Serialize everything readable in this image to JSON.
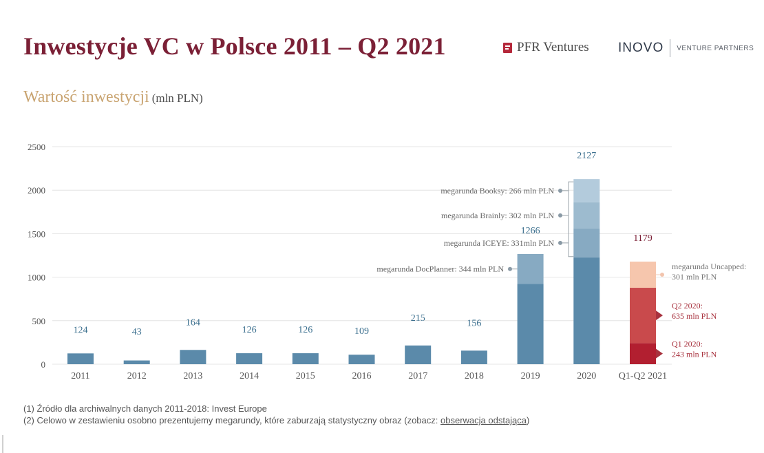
{
  "header": {
    "title": "Inwestycje VC w Polsce 2011 – Q2 2021",
    "logos": {
      "pfr": "PFR Ventures",
      "inovo_name": "INOVO",
      "inovo_sub": "VENTURE PARTNERS"
    }
  },
  "subtitle": {
    "main": "Wartość inwestycji",
    "unit": "(mln PLN)"
  },
  "chart_data": {
    "type": "bar",
    "stacked": true,
    "ylim": [
      0,
      2500
    ],
    "yticks": [
      0,
      500,
      1000,
      1500,
      2000,
      2500
    ],
    "grid": true,
    "categories": [
      "2011",
      "2012",
      "2013",
      "2014",
      "2015",
      "2016",
      "2017",
      "2018",
      "2019",
      "2020",
      "Q1-Q2 2021"
    ],
    "totals": [
      124,
      43,
      164,
      126,
      126,
      109,
      215,
      156,
      1266,
      2127,
      1179
    ],
    "total_labels": [
      "124",
      "43",
      "164",
      "126",
      "126",
      "109",
      "215",
      "156",
      "1266",
      "2127",
      "1179"
    ],
    "stacks": [
      [
        {
          "value": 124,
          "color": "#5b8aaa"
        }
      ],
      [
        {
          "value": 43,
          "color": "#5b8aaa"
        }
      ],
      [
        {
          "value": 164,
          "color": "#5b8aaa"
        }
      ],
      [
        {
          "value": 126,
          "color": "#5b8aaa"
        }
      ],
      [
        {
          "value": 126,
          "color": "#5b8aaa"
        }
      ],
      [
        {
          "value": 109,
          "color": "#5b8aaa"
        }
      ],
      [
        {
          "value": 215,
          "color": "#5b8aaa"
        }
      ],
      [
        {
          "value": 156,
          "color": "#5b8aaa"
        }
      ],
      [
        {
          "value": 922,
          "color": "#5b8aaa"
        },
        {
          "value": 344,
          "color": "#87aac2"
        }
      ],
      [
        {
          "value": 1228,
          "color": "#5b8aaa"
        },
        {
          "value": 331,
          "color": "#87aac2"
        },
        {
          "value": 302,
          "color": "#9dbbcf"
        },
        {
          "value": 266,
          "color": "#b3cbdc"
        }
      ],
      [
        {
          "value": 243,
          "color": "#b21f30"
        },
        {
          "value": 635,
          "color": "#c94a4c"
        },
        {
          "value": 301,
          "color": "#f6c6ad"
        }
      ]
    ],
    "annotations": [
      {
        "text": "megarunda DocPlanner: 344 mln PLN",
        "category": 8,
        "segment": 1,
        "side": "left"
      },
      {
        "text": "megarunda ICEYE: 331mln PLN",
        "category": 9,
        "segment": 1,
        "side": "left"
      },
      {
        "text": "megarunda Brainly: 302 mln PLN",
        "category": 9,
        "segment": 2,
        "side": "left"
      },
      {
        "text": "megarunda Booksy: 266 mln PLN",
        "category": 9,
        "segment": 3,
        "side": "left"
      },
      {
        "lines": [
          "megarunda Uncapped:",
          "301 mln PLN"
        ],
        "category": 10,
        "segment": 2,
        "side": "right",
        "color": "#777777",
        "marker": "dot"
      },
      {
        "lines": [
          "Q2 2020:",
          "635 mln PLN"
        ],
        "category": 10,
        "segment": 1,
        "side": "right",
        "color": "#a8323e",
        "marker": "arrow"
      },
      {
        "lines": [
          "Q1 2020:",
          "243 mln PLN"
        ],
        "category": 10,
        "segment": 0,
        "side": "right",
        "color": "#a8323e",
        "marker": "arrow"
      }
    ],
    "colors": {
      "total_label_blue": "#3b6f8e",
      "total_label_red": "#7b2036",
      "axis_text": "#555555",
      "grid": "#e4e4e4"
    }
  },
  "footnotes": {
    "line1": "(1) Źródło dla archiwalnych danych 2011-2018: Invest Europe",
    "line2_prefix": "(2) Celowo w zestawieniu osobno prezentujemy megarundy, które zaburzają statystyczny obraz (zobacz: ",
    "line2_link": "obserwacja odstająca",
    "line2_suffix": ")"
  }
}
